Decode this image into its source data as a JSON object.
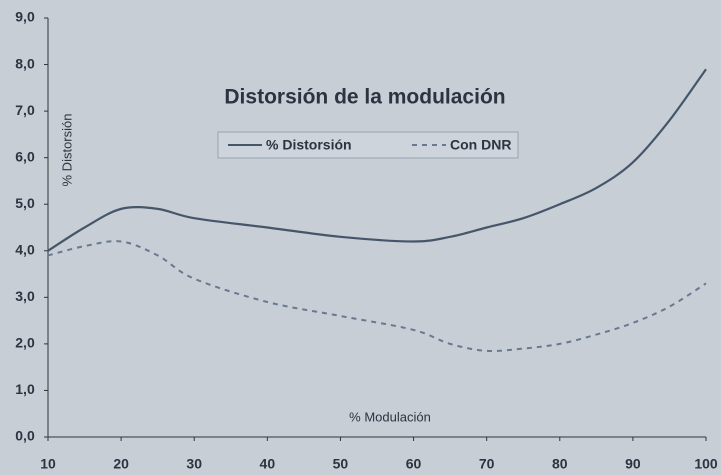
{
  "chart_data": {
    "type": "line",
    "title": "Distorsión de la modulación",
    "xlabel": "% Modulación",
    "ylabel": "% Distorsión",
    "x": [
      10,
      15,
      20,
      25,
      30,
      40,
      50,
      60,
      65,
      70,
      75,
      80,
      85,
      90,
      95,
      100
    ],
    "series": [
      {
        "name": "% Distorsión",
        "color": "#46566a",
        "dash": "solid",
        "values": [
          4.0,
          4.5,
          4.9,
          4.9,
          4.7,
          4.5,
          4.3,
          4.2,
          4.3,
          4.5,
          4.7,
          5.0,
          5.35,
          5.9,
          6.8,
          7.9
        ]
      },
      {
        "name": "Con DNR",
        "color": "#6a7890",
        "dash": "dashed",
        "values": [
          3.9,
          4.1,
          4.2,
          3.9,
          3.4,
          2.9,
          2.6,
          2.3,
          2.0,
          1.85,
          1.9,
          2.0,
          2.2,
          2.45,
          2.8,
          3.3
        ]
      }
    ],
    "xlim": [
      10,
      100
    ],
    "xticks": [
      10,
      20,
      30,
      40,
      50,
      60,
      70,
      80,
      90,
      100
    ],
    "ylim": [
      0,
      9
    ],
    "yticks": [
      {
        "value": 0,
        "label": "0,0"
      },
      {
        "value": 1,
        "label": "1,0"
      },
      {
        "value": 2,
        "label": "2,0"
      },
      {
        "value": 3,
        "label": "3,0"
      },
      {
        "value": 4,
        "label": "4,0"
      },
      {
        "value": 5,
        "label": "5,0"
      },
      {
        "value": 6,
        "label": "6,0"
      },
      {
        "value": 7,
        "label": "7,0"
      },
      {
        "value": 8,
        "label": "8,0"
      },
      {
        "value": 9,
        "label": "9,0"
      }
    ]
  }
}
